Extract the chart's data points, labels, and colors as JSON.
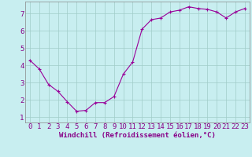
{
  "x": [
    0,
    1,
    2,
    3,
    4,
    5,
    6,
    7,
    8,
    9,
    10,
    11,
    12,
    13,
    14,
    15,
    16,
    17,
    18,
    19,
    20,
    21,
    22,
    23
  ],
  "y": [
    4.3,
    3.8,
    2.9,
    2.5,
    1.9,
    1.35,
    1.4,
    1.85,
    1.85,
    2.2,
    3.5,
    4.2,
    6.1,
    6.65,
    6.75,
    7.1,
    7.2,
    7.4,
    7.3,
    7.25,
    7.1,
    6.75,
    7.1,
    7.3
  ],
  "line_color": "#990099",
  "marker": "+",
  "marker_size": 3,
  "xlabel": "Windchill (Refroidissement éolien,°C)",
  "ylabel": "",
  "ylim": [
    0.7,
    7.7
  ],
  "xlim": [
    -0.5,
    23.5
  ],
  "yticks": [
    1,
    2,
    3,
    4,
    5,
    6,
    7
  ],
  "xticks": [
    0,
    1,
    2,
    3,
    4,
    5,
    6,
    7,
    8,
    9,
    10,
    11,
    12,
    13,
    14,
    15,
    16,
    17,
    18,
    19,
    20,
    21,
    22,
    23
  ],
  "xtick_labels": [
    "0",
    "1",
    "2",
    "3",
    "4",
    "5",
    "6",
    "7",
    "8",
    "9",
    "10",
    "11",
    "12",
    "13",
    "14",
    "15",
    "16",
    "17",
    "18",
    "19",
    "20",
    "21",
    "22",
    "23"
  ],
  "background_color": "#c8eef0",
  "grid_color": "#a0ccc8",
  "tick_label_color": "#880088",
  "xlabel_color": "#880088",
  "xlabel_fontsize": 6.5,
  "tick_fontsize": 6.5,
  "linewidth": 0.8,
  "spine_color": "#888888"
}
